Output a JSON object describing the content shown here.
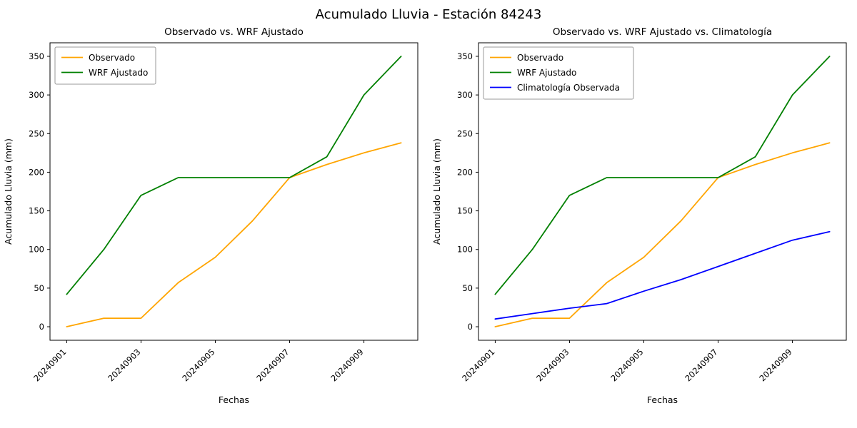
{
  "figure_title": "Acumulado Lluvia - Estación 84243",
  "colors": {
    "observado": "#FFA500",
    "wrf": "#008000",
    "climatologia": "#0000FF",
    "axis": "#000000"
  },
  "chart_data": [
    {
      "type": "line",
      "title": "Observado vs. WRF Ajustado",
      "xlabel": "Fechas",
      "ylabel": "Acumulado Lluvia (mm)",
      "x": [
        "20240901",
        "20240902",
        "20240903",
        "20240904",
        "20240905",
        "20240906",
        "20240907",
        "20240908",
        "20240909",
        "20240910"
      ],
      "xticks": [
        "20240901",
        "20240903",
        "20240905",
        "20240907",
        "20240909"
      ],
      "yticks": [
        0,
        50,
        100,
        150,
        200,
        250,
        300,
        350
      ],
      "ylim": [
        0,
        350
      ],
      "grid": false,
      "legend_position": "upper left",
      "series": [
        {
          "name": "Observado",
          "color": "#FFA500",
          "values": [
            0,
            11,
            11,
            57,
            90,
            137,
            193,
            210,
            225,
            238
          ]
        },
        {
          "name": "WRF Ajustado",
          "color": "#008000",
          "values": [
            42,
            100,
            170,
            193,
            193,
            193,
            193,
            220,
            300,
            350
          ]
        }
      ]
    },
    {
      "type": "line",
      "title": "Observado vs. WRF Ajustado vs. Climatología",
      "xlabel": "Fechas",
      "ylabel": "Acumulado Lluvia (mm)",
      "x": [
        "20240901",
        "20240902",
        "20240903",
        "20240904",
        "20240905",
        "20240906",
        "20240907",
        "20240908",
        "20240909",
        "20240910"
      ],
      "xticks": [
        "20240901",
        "20240903",
        "20240905",
        "20240907",
        "20240909"
      ],
      "yticks": [
        0,
        50,
        100,
        150,
        200,
        250,
        300,
        350
      ],
      "ylim": [
        0,
        350
      ],
      "grid": false,
      "legend_position": "upper left",
      "series": [
        {
          "name": "Observado",
          "color": "#FFA500",
          "values": [
            0,
            11,
            11,
            57,
            90,
            137,
            193,
            210,
            225,
            238
          ]
        },
        {
          "name": "WRF Ajustado",
          "color": "#008000",
          "values": [
            42,
            100,
            170,
            193,
            193,
            193,
            193,
            220,
            300,
            350
          ]
        },
        {
          "name": "Climatología Observada",
          "color": "#0000FF",
          "values": [
            10,
            17,
            24,
            30,
            46,
            61,
            78,
            95,
            112,
            123
          ]
        }
      ]
    }
  ]
}
